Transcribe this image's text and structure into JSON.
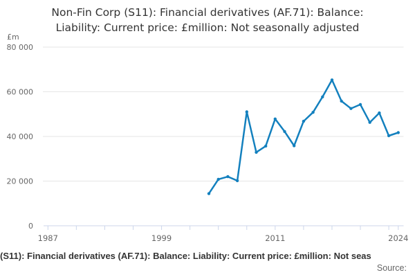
{
  "title": {
    "line1": "Non-Fin Corp (S11): Financial derivatives (AF.71): Balance:",
    "line2": "Liability: Current price: £million: Not seasonally adjusted"
  },
  "y_axis_unit": "£m",
  "footer": {
    "caption": "(S11): Financial derivatives (AF.71): Balance: Liability: Current price: £million: Not seas",
    "source_label": "Source:"
  },
  "colors": {
    "series": "#1380be",
    "grid": "#e6e6e6",
    "axis_line": "#ccd6eb",
    "axis_text": "#666666",
    "title_text": "#333333"
  },
  "chart_data": {
    "type": "line",
    "title": "Non-Fin Corp (S11): Financial derivatives (AF.71): Balance: Liability: Current price: £million: Not seasonally adjusted",
    "ylabel": "£m",
    "xlabel": "",
    "x": [
      2004,
      2005,
      2006,
      2007,
      2008,
      2009,
      2010,
      2011,
      2012,
      2013,
      2014,
      2015,
      2016,
      2017,
      2018,
      2019,
      2020,
      2021,
      2022,
      2023,
      2024
    ],
    "values": [
      14400,
      20800,
      22000,
      20200,
      51000,
      32900,
      35700,
      47800,
      42200,
      35800,
      46800,
      50800,
      57700,
      65300,
      55800,
      52500,
      54300,
      46300,
      50500,
      40300,
      41700
    ],
    "series_color": "#1380be",
    "xlim": [
      1987,
      2024
    ],
    "ylim": [
      0,
      80000
    ],
    "y_ticks": [
      0,
      20000,
      40000,
      60000,
      80000
    ],
    "y_tick_labels": [
      "0",
      "20 000",
      "40 000",
      "60 000",
      "80 000"
    ],
    "x_minor_tick_years": [
      1987,
      1990,
      1993,
      1996,
      1999,
      2002,
      2005,
      2008,
      2011,
      2014,
      2017,
      2020,
      2023,
      2024
    ],
    "x_labeled_ticks": [
      {
        "year": 1987,
        "label": "1987"
      },
      {
        "year": 1999,
        "label": "1999"
      },
      {
        "year": 2011,
        "label": "2011"
      },
      {
        "year": 2024,
        "label": "2024"
      }
    ],
    "grid": "horizontal",
    "legend": "none",
    "markers": true
  }
}
